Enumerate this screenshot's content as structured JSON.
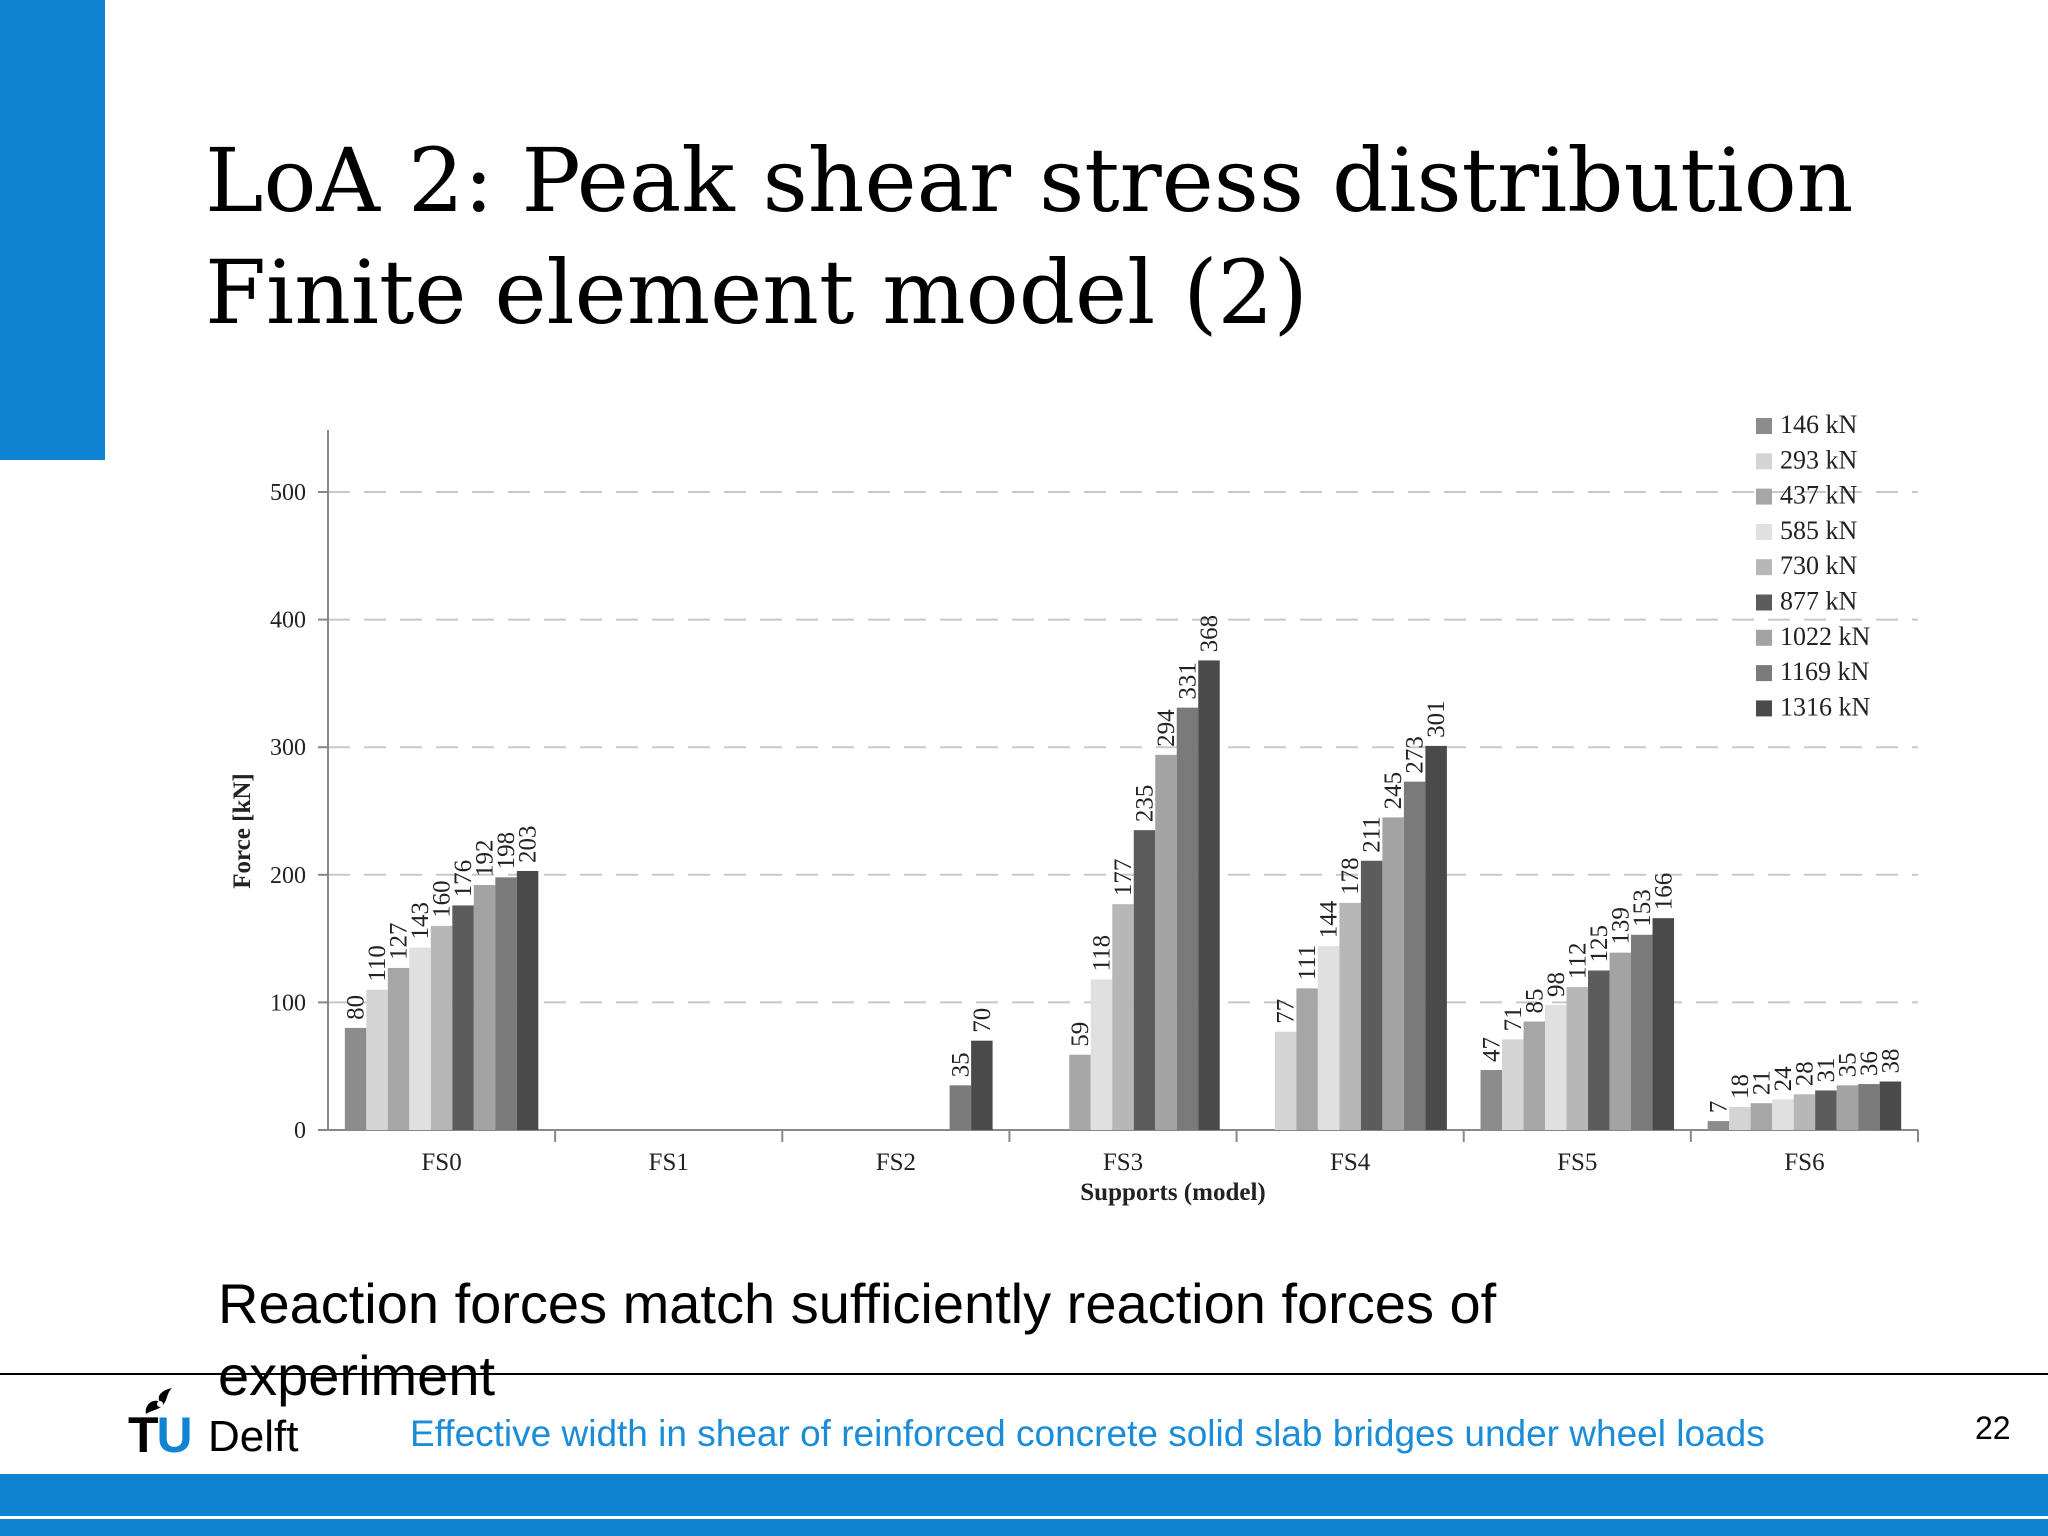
{
  "slide": {
    "title_line1": "LoA 2: Peak shear stress distribution",
    "title_line2": "Finite element model (2)",
    "caption": "Reaction forces match sufficiently reaction forces of experiment",
    "footer_text": "Effective width in shear of reinforced concrete solid slab bridges under wheel loads",
    "page_number": "22",
    "logo_tu": "TU",
    "logo_delft": "Delft",
    "accent_color": "#1183d3"
  },
  "chart_data": {
    "type": "bar",
    "xlabel": "Supports (model)",
    "ylabel": "Force [kN]",
    "ylim": [
      0,
      500
    ],
    "yticks": [
      0,
      100,
      200,
      300,
      400,
      500
    ],
    "grid": "horizontal dashed",
    "legend_position": "top-right",
    "categories": [
      "FS0",
      "FS1",
      "FS2",
      "FS3",
      "FS4",
      "FS5",
      "FS6"
    ],
    "series": [
      {
        "name": "146 kN",
        "color": "#8c8c8c",
        "values": [
          80,
          null,
          null,
          null,
          null,
          47,
          7
        ]
      },
      {
        "name": "293 kN",
        "color": "#d4d4d4",
        "values": [
          110,
          null,
          null,
          null,
          77,
          71,
          18
        ]
      },
      {
        "name": "437 kN",
        "color": "#a6a6a6",
        "values": [
          127,
          null,
          null,
          59,
          111,
          85,
          21
        ]
      },
      {
        "name": "585 kN",
        "color": "#e0e0e0",
        "values": [
          143,
          null,
          null,
          118,
          144,
          98,
          24
        ]
      },
      {
        "name": "730 kN",
        "color": "#b7b7b7",
        "values": [
          160,
          null,
          null,
          177,
          178,
          112,
          28
        ]
      },
      {
        "name": "877 kN",
        "color": "#5c5c5c",
        "values": [
          176,
          null,
          null,
          235,
          211,
          125,
          31
        ]
      },
      {
        "name": "1022 kN",
        "color": "#a3a3a3",
        "values": [
          192,
          null,
          null,
          294,
          245,
          139,
          35
        ]
      },
      {
        "name": "1169 kN",
        "color": "#7a7a7a",
        "values": [
          198,
          null,
          35,
          331,
          273,
          153,
          36
        ]
      },
      {
        "name": "1316 kN",
        "color": "#4a4a4a",
        "values": [
          203,
          null,
          70,
          368,
          301,
          166,
          38
        ]
      }
    ]
  }
}
